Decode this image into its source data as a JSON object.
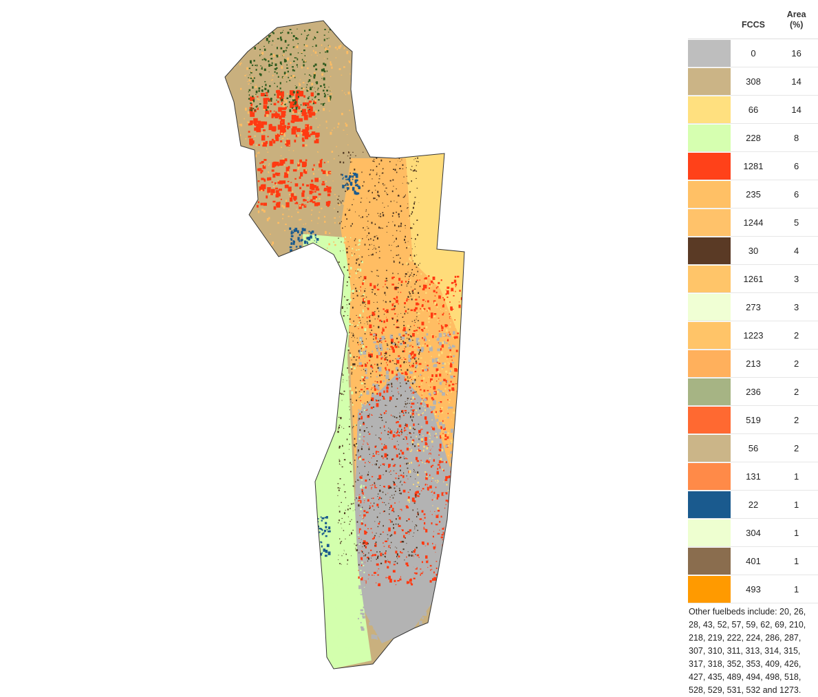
{
  "legend": {
    "headers": {
      "swatch": "",
      "fccs": "FCCS",
      "area_line1": "Area",
      "area_line2": "(%)"
    },
    "rows": [
      {
        "code": "0",
        "area": "16",
        "color": "#bebebe"
      },
      {
        "code": "308",
        "area": "14",
        "color": "#cbb486"
      },
      {
        "code": "66",
        "area": "14",
        "color": "#ffe07f"
      },
      {
        "code": "228",
        "area": "8",
        "color": "#d6ffb0"
      },
      {
        "code": "1281",
        "area": "6",
        "color": "#ff4119"
      },
      {
        "code": "235",
        "area": "6",
        "color": "#ffc065"
      },
      {
        "code": "1244",
        "area": "5",
        "color": "#ffc26a"
      },
      {
        "code": "30",
        "area": "4",
        "color": "#5a3a25"
      },
      {
        "code": "1261",
        "area": "3",
        "color": "#ffc569"
      },
      {
        "code": "273",
        "area": "3",
        "color": "#f0ffd4"
      },
      {
        "code": "1223",
        "area": "2",
        "color": "#ffc468"
      },
      {
        "code": "213",
        "area": "2",
        "color": "#ffb05c"
      },
      {
        "code": "236",
        "area": "2",
        "color": "#a6b484"
      },
      {
        "code": "519",
        "area": "2",
        "color": "#ff6931"
      },
      {
        "code": "56",
        "area": "2",
        "color": "#cbb588"
      },
      {
        "code": "131",
        "area": "1",
        "color": "#ff8a48"
      },
      {
        "code": "22",
        "area": "1",
        "color": "#1a5a8e"
      },
      {
        "code": "304",
        "area": "1",
        "color": "#eeffd0"
      },
      {
        "code": "401",
        "area": "1",
        "color": "#8a6d4e"
      },
      {
        "code": "493",
        "area": "1",
        "color": "#ff9a00"
      }
    ],
    "note": "Other fuelbeds include: 20, 26, 28, 43, 52, 57, 59, 62, 69, 210, 218, 219, 222, 224, 286, 287, 307, 310, 311, 313, 314, 315, 317, 318, 352, 353, 409, 426, 427, 435, 489, 494, 498, 518, 528, 529, 531, 532 and 1273."
  },
  "map": {
    "colors": {
      "tan": "#c9b07e",
      "yellow": "#ffdc7a",
      "green": "#d3ffad",
      "red": "#ff3a12",
      "orange": "#ffbd63",
      "gray": "#b3b3b3",
      "brown": "#4d3520",
      "blue": "#1a5a8e",
      "darkgreen": "#2e5a1e",
      "outline": "#333333"
    }
  }
}
